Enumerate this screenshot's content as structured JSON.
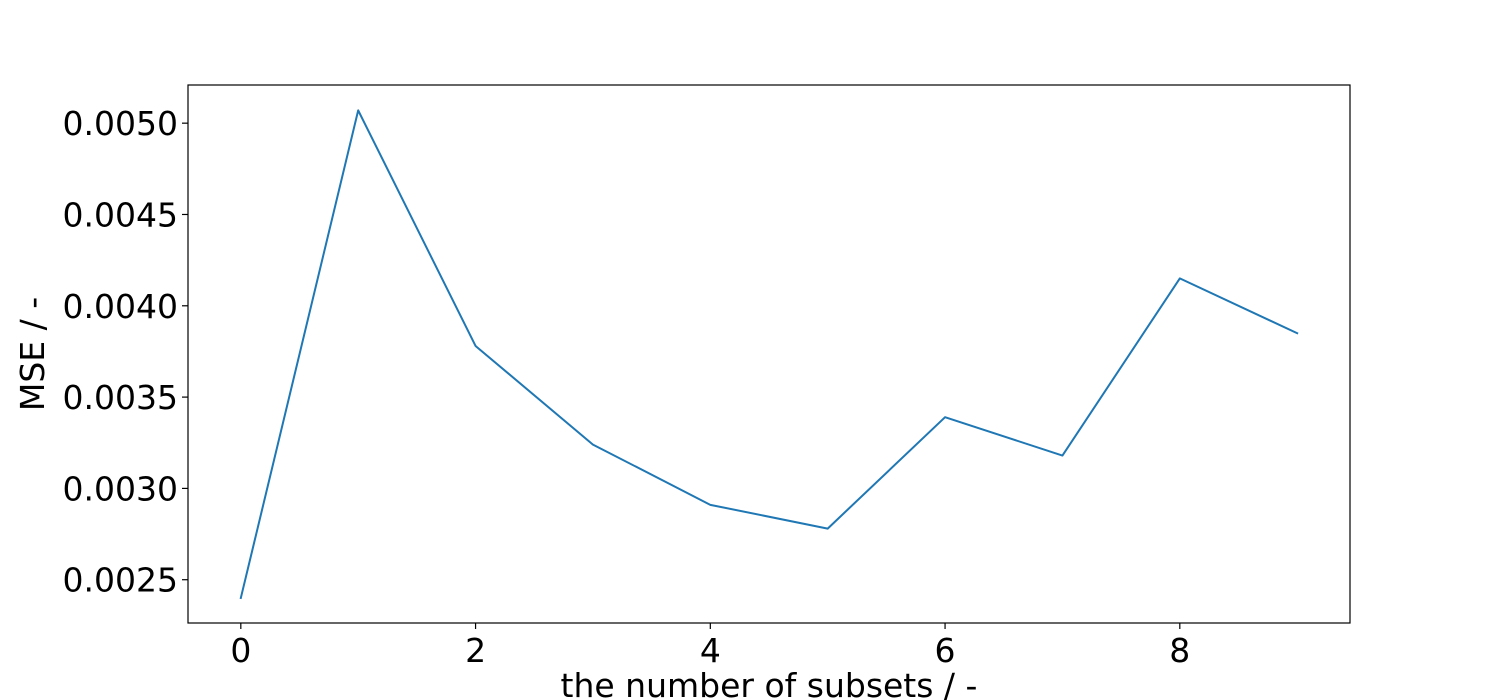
{
  "chart_data": {
    "type": "line",
    "title": "",
    "xlabel": "the number of subsets / -",
    "ylabel": "MSE / -",
    "x": [
      0,
      1,
      2,
      3,
      4,
      5,
      6,
      7,
      8,
      9
    ],
    "series": [
      {
        "values": [
          0.0024,
          0.00507,
          0.00378,
          0.00324,
          0.00291,
          0.00278,
          0.00339,
          0.00318,
          0.00415,
          0.00385
        ],
        "color": "#1f77b4"
      }
    ],
    "xlim": [
      -0.45,
      9.45
    ],
    "ylim": [
      0.002263,
      0.005209
    ],
    "xticks": [
      0,
      2,
      4,
      6,
      8
    ],
    "xtick_labels": [
      "0",
      "2",
      "4",
      "6",
      "8"
    ],
    "yticks": [
      0.0025,
      0.003,
      0.0035,
      0.004,
      0.0045,
      0.005
    ],
    "ytick_labels": [
      "0.0025",
      "0.0030",
      "0.0035",
      "0.0040",
      "0.0045",
      "0.0050"
    ],
    "grid": false,
    "legend": false
  }
}
